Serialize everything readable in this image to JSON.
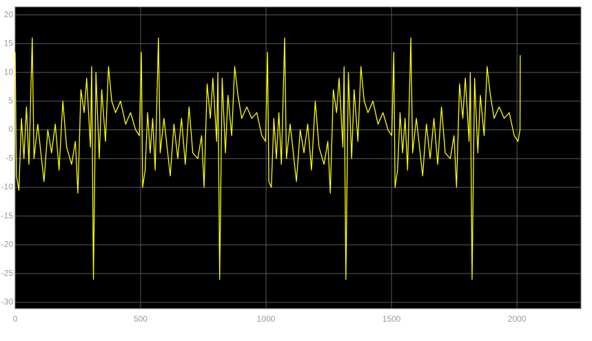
{
  "chart_data": {
    "type": "line",
    "x": [
      0,
      5,
      15,
      25,
      35,
      45,
      55,
      68,
      75,
      90,
      100,
      115,
      130,
      145,
      160,
      175,
      190,
      205,
      225,
      240,
      250,
      262,
      275,
      285,
      300,
      305,
      312,
      322,
      335,
      345,
      360,
      372,
      385,
      400,
      420,
      440,
      460,
      480,
      495,
      503,
      508,
      518,
      528,
      538,
      548,
      558,
      571,
      578,
      593,
      603,
      618,
      633,
      648,
      663,
      678,
      693,
      708,
      728,
      743,
      753,
      765,
      778,
      788,
      803,
      808,
      815,
      825,
      838,
      848,
      863,
      875,
      888,
      903,
      923,
      943,
      963,
      983,
      998,
      1006,
      1011,
      1021,
      1031,
      1041,
      1051,
      1061,
      1074,
      1081,
      1096,
      1106,
      1121,
      1136,
      1151,
      1166,
      1181,
      1196,
      1211,
      1231,
      1246,
      1256,
      1268,
      1281,
      1291,
      1306,
      1311,
      1318,
      1328,
      1341,
      1351,
      1366,
      1378,
      1391,
      1406,
      1426,
      1446,
      1466,
      1486,
      1501,
      1509,
      1514,
      1524,
      1534,
      1544,
      1554,
      1564,
      1577,
      1584,
      1599,
      1609,
      1624,
      1639,
      1654,
      1669,
      1684,
      1699,
      1714,
      1734,
      1749,
      1759,
      1771,
      1784,
      1794,
      1809,
      1814,
      1821,
      1831,
      1844,
      1854,
      1869,
      1881,
      1894,
      1909,
      1929,
      1949,
      1969,
      1989,
      2004,
      2012,
      2013
    ],
    "series": [
      {
        "color": "#ffff00",
        "values": [
          13.5,
          -8,
          -10.5,
          2,
          -5,
          4,
          -6,
          16,
          -5,
          1,
          -3,
          -9,
          0,
          -4,
          1,
          -7,
          5,
          -3,
          -6,
          -2,
          -11,
          7,
          3,
          9,
          -3,
          11,
          -26,
          10,
          -5,
          7,
          -2,
          11,
          5,
          3,
          5,
          1,
          3,
          0,
          -1,
          13.5,
          -10,
          -7,
          3,
          -4,
          2,
          -7,
          16,
          -4,
          2,
          -2,
          -8,
          1,
          -5,
          2,
          -6,
          4,
          -4,
          -5,
          -1,
          -10,
          8,
          2,
          9,
          -2,
          10,
          -26,
          9,
          -4,
          6,
          -1,
          11,
          6,
          2,
          4,
          2,
          3,
          -1,
          -2,
          13.5,
          -9,
          -10,
          2,
          -5,
          3,
          -6,
          16,
          -5,
          1,
          -3,
          -9,
          0,
          -4,
          1,
          -7,
          5,
          -3,
          -6,
          -2,
          -11,
          7,
          3,
          9,
          -3,
          11,
          -26,
          10,
          -5,
          7,
          -2,
          11,
          5,
          3,
          5,
          1,
          3,
          0,
          -1,
          13.5,
          -10,
          -7,
          3,
          -4,
          2,
          -7,
          16,
          -4,
          2,
          -2,
          -8,
          1,
          -5,
          2,
          -6,
          4,
          -4,
          -5,
          -1,
          -10,
          8,
          2,
          9,
          -2,
          10,
          -26,
          9,
          -4,
          6,
          -1,
          11,
          6,
          2,
          4,
          2,
          3,
          -1,
          -2,
          0,
          13
        ]
      }
    ],
    "xlim": [
      0,
      2255
    ],
    "ylim": [
      -31.1,
      21.4
    ],
    "xticks": [
      0,
      500,
      1000,
      1500,
      2000
    ],
    "yticks": [
      -30,
      -25,
      -20,
      -15,
      -10,
      -5,
      0,
      5,
      10,
      15,
      20
    ],
    "grid": true,
    "background": "#000000"
  }
}
